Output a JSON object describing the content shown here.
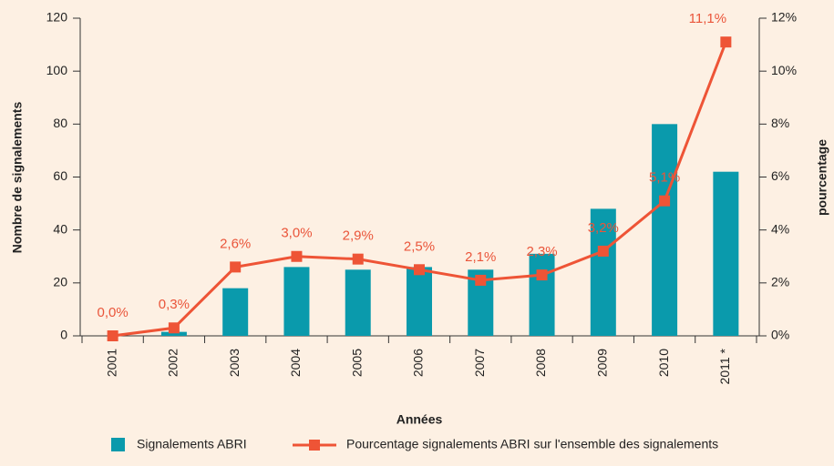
{
  "chart_data": {
    "type": "bar-line",
    "categories": [
      "2001",
      "2002",
      "2003",
      "2004",
      "2005",
      "2006",
      "2007",
      "2008",
      "2009",
      "2010",
      "2011 *"
    ],
    "series": [
      {
        "name": "Signalements ABRI",
        "color": "#0a9aac",
        "values": [
          0,
          1.5,
          18,
          26,
          25,
          26,
          25,
          31,
          48,
          80,
          62
        ]
      },
      {
        "name": "Pourcentage signalements ABRI sur l'ensemble des signalements",
        "color": "#ee5436",
        "axis": "y2",
        "values": [
          0,
          0.3,
          2.6,
          3.0,
          2.9,
          2.5,
          2.1,
          2.3,
          3.2,
          5.1,
          11.1
        ],
        "value_labels": [
          "0,0%",
          "0,3%",
          "2,6%",
          "3,0%",
          "2,9%",
          "2,5%",
          "2,1%",
          "2,3%",
          "3,2%",
          "5,1%",
          "11,1%"
        ]
      }
    ],
    "xlabel": "Années",
    "ylabel": "Nombre de signalements",
    "y2label": "pourcentage",
    "ylim": [
      0,
      120
    ],
    "yticks": [
      0,
      20,
      40,
      60,
      80,
      100,
      120
    ],
    "y2lim": [
      0,
      12
    ],
    "y2ticks": [
      {
        "value": 0,
        "label": "0%"
      },
      {
        "value": 2,
        "label": "2%"
      },
      {
        "value": 4,
        "label": "4%"
      },
      {
        "value": 6,
        "label": "6%"
      },
      {
        "value": 8,
        "label": "8%"
      },
      {
        "value": 10,
        "label": "10%"
      },
      {
        "value": 12,
        "label": "12%"
      }
    ]
  }
}
